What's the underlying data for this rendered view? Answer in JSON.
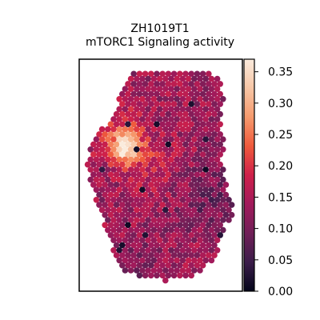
{
  "chart_data": {
    "type": "heatmap",
    "subtype": "hexagonal spatial spot map",
    "title_line1": "ZH1019T1",
    "title_line2": "mTORC1 Signaling activity",
    "xlabel": "",
    "ylabel": "",
    "axes_ticks_shown": false,
    "colormap": "rocket",
    "colormap_stops": [
      "#03051a",
      "#3b1d4a",
      "#701f57",
      "#a11a5b",
      "#ce204a",
      "#ef5a3c",
      "#f59a6d",
      "#f7c6a6",
      "#faebdd"
    ],
    "colorbar": {
      "placement": "right",
      "range": [
        0.0,
        0.37
      ],
      "ticks": [
        0.0,
        0.05,
        0.1,
        0.15,
        0.2,
        0.25,
        0.3,
        0.35
      ],
      "tick_labels": [
        "0.00",
        "0.05",
        "0.10",
        "0.15",
        "0.20",
        "0.25",
        "0.30",
        "0.35"
      ]
    },
    "value_summary": {
      "typical_range": [
        0.1,
        0.22
      ],
      "hotspot_peak": 0.34,
      "hotspot_region": "upper-left of tissue",
      "low_spots_region": "right edge of tissue"
    }
  }
}
